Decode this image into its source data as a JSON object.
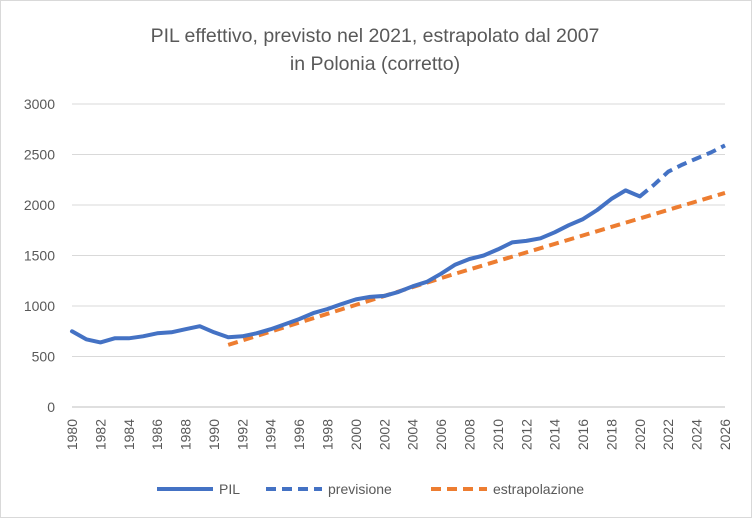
{
  "chart_data": {
    "type": "line",
    "title": [
      "PIL effettivo, previsto nel 2021, estrapolato dal 2007",
      "in Polonia (corretto)"
    ],
    "xlabel": "",
    "ylabel": "",
    "ylim": [
      0,
      3000
    ],
    "yticks": [
      "0",
      "500",
      "1000",
      "1500",
      "2000",
      "2500",
      "3000"
    ],
    "xlim": [
      1980,
      2026
    ],
    "xticks": [
      "1980",
      "1982",
      "1984",
      "1986",
      "1988",
      "1990",
      "1992",
      "1994",
      "1996",
      "1998",
      "2000",
      "2002",
      "2004",
      "2006",
      "2008",
      "2010",
      "2012",
      "2014",
      "2016",
      "2018",
      "2020",
      "2022",
      "2024",
      "2026"
    ],
    "grid": true,
    "legend_position": "bottom",
    "series": [
      {
        "name": "PIL",
        "style": "solid",
        "color": "#4472c4",
        "x": [
          1980,
          1981,
          1982,
          1983,
          1984,
          1985,
          1986,
          1987,
          1988,
          1989,
          1990,
          1991,
          1992,
          1993,
          1994,
          1995,
          1996,
          1997,
          1998,
          1999,
          2000,
          2001,
          2002,
          2003,
          2004,
          2005,
          2006,
          2007,
          2008,
          2009,
          2010,
          2011,
          2012,
          2013,
          2014,
          2015,
          2016,
          2017,
          2018,
          2019,
          2020
        ],
        "y": [
          750,
          670,
          640,
          680,
          680,
          700,
          730,
          740,
          770,
          800,
          740,
          690,
          700,
          730,
          770,
          820,
          870,
          930,
          970,
          1020,
          1065,
          1090,
          1100,
          1140,
          1195,
          1240,
          1320,
          1410,
          1465,
          1500,
          1560,
          1630,
          1645,
          1670,
          1730,
          1800,
          1860,
          1950,
          2060,
          2145,
          2085
        ]
      },
      {
        "name": "previsione",
        "style": "dashed",
        "color": "#4472c4",
        "x": [
          2020,
          2021,
          2022,
          2023,
          2024,
          2025,
          2026
        ],
        "y": [
          2085,
          2200,
          2330,
          2400,
          2460,
          2520,
          2590
        ]
      },
      {
        "name": "estrapolazione",
        "style": "dashed",
        "color": "#ed7d31",
        "x": [
          1991,
          2007,
          2026
        ],
        "y": [
          615,
          1320,
          2120
        ]
      }
    ]
  }
}
